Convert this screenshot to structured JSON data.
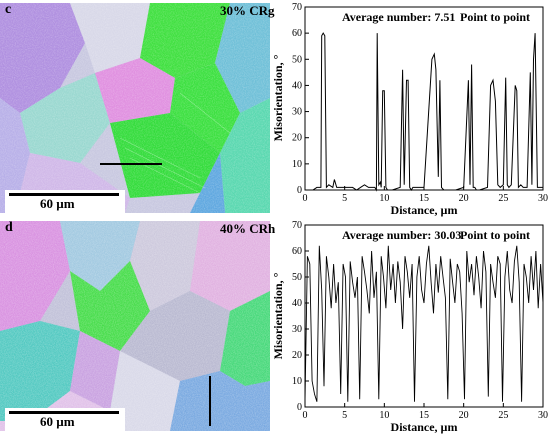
{
  "panels": [
    {
      "letter": "c",
      "condition": "30% CRg",
      "scale_bar": "60 µm",
      "measurement_line": "horizontal",
      "plot": {
        "annotation_left": "Average number: 7.51",
        "annotation_right": "Point to point"
      }
    },
    {
      "letter": "d",
      "condition": "40% CRh",
      "scale_bar": "60 µm",
      "measurement_line": "vertical",
      "plot": {
        "annotation_left": "Average number: 30.03",
        "annotation_right": "Point to point"
      }
    }
  ],
  "colors": {
    "green": "#3ce040",
    "magenta": "#e070e8",
    "blue": "#6a8ae8",
    "gray": "#b8b8c8",
    "light": "#e8e8f0",
    "line": "#000000"
  },
  "chart_data": [
    {
      "type": "line",
      "title": "",
      "xlabel": "Distance, µm",
      "ylabel": "Misorientation, °",
      "xlim": [
        0,
        30
      ],
      "ylim": [
        0,
        70
      ],
      "xticks": [
        0,
        5,
        10,
        15,
        20,
        25,
        30
      ],
      "yticks": [
        0,
        10,
        20,
        30,
        40,
        50,
        60,
        70
      ],
      "grid": false,
      "series": [
        {
          "x": [
            0,
            1.0,
            1.5,
            2.0,
            2.1,
            2.3,
            2.5,
            2.7,
            3.0,
            3.5,
            3.7,
            4.0,
            5.0,
            6.0,
            6.5,
            7.0,
            7.5,
            8.0,
            8.5,
            8.8,
            9.0,
            9.1,
            9.3,
            9.5,
            9.6,
            9.8,
            10.0,
            10.2,
            10.4,
            11.0,
            12.0,
            12.3,
            12.5,
            12.8,
            13.0,
            13.2,
            13.4,
            13.6,
            14.0,
            15.0,
            16.0,
            16.3,
            16.5,
            16.8,
            17.0,
            17.2,
            17.5,
            18.0,
            19.0,
            20.0,
            20.6,
            20.8,
            21.0,
            21.2,
            21.4,
            21.6,
            22.0,
            23.0,
            23.4,
            23.7,
            24.0,
            24.3,
            24.6,
            25.0,
            25.3,
            25.5,
            25.7,
            26.0,
            26.5,
            26.7,
            26.9,
            27.2,
            27.5,
            28.0,
            28.4,
            28.6,
            28.8,
            29.0,
            29.3,
            30.0
          ],
          "y": [
            0,
            0,
            1,
            1,
            59,
            60,
            59,
            1,
            2,
            1,
            4,
            1,
            1,
            1,
            0,
            1,
            2,
            1,
            1,
            1,
            0,
            60,
            2,
            3,
            1,
            38,
            38,
            1,
            0,
            0,
            1,
            46,
            2,
            42,
            42,
            1,
            0,
            1,
            1,
            1,
            50,
            52,
            46,
            5,
            42,
            1,
            0,
            0,
            0,
            1,
            42,
            2,
            48,
            1,
            1,
            0,
            0,
            1,
            40,
            42,
            34,
            2,
            1,
            2,
            43,
            2,
            1,
            2,
            40,
            38,
            1,
            2,
            1,
            1,
            45,
            2,
            50,
            60,
            1,
            1
          ]
        }
      ]
    },
    {
      "type": "line",
      "title": "",
      "xlabel": "Distance, µm",
      "ylabel": "Misorientation, °",
      "xlim": [
        0,
        30
      ],
      "ylim": [
        0,
        70
      ],
      "xticks": [
        0,
        5,
        10,
        15,
        20,
        25,
        30
      ],
      "yticks": [
        0,
        10,
        20,
        30,
        40,
        50,
        60,
        70
      ],
      "grid": false,
      "series": [
        {
          "x": [
            0,
            0.3,
            0.6,
            0.9,
            1.2,
            1.5,
            1.8,
            2.1,
            2.4,
            2.7,
            3.0,
            3.3,
            3.6,
            3.9,
            4.2,
            4.5,
            4.8,
            5.1,
            5.4,
            5.7,
            6.0,
            6.3,
            6.6,
            6.9,
            7.2,
            7.5,
            7.8,
            8.1,
            8.4,
            8.7,
            9.0,
            9.3,
            9.6,
            9.9,
            10.2,
            10.5,
            10.8,
            11.1,
            11.4,
            11.7,
            12.0,
            12.3,
            12.6,
            12.9,
            13.2,
            13.5,
            13.8,
            14.1,
            14.4,
            14.7,
            15.0,
            15.3,
            15.6,
            15.9,
            16.2,
            16.5,
            16.8,
            17.1,
            17.4,
            17.7,
            18.0,
            18.3,
            18.6,
            18.9,
            19.2,
            19.5,
            19.8,
            20.1,
            20.4,
            20.7,
            21.0,
            21.3,
            21.6,
            21.9,
            22.2,
            22.5,
            22.8,
            23.1,
            23.4,
            23.7,
            24.0,
            24.3,
            24.6,
            24.9,
            25.2,
            25.5,
            25.8,
            26.1,
            26.4,
            26.7,
            27.0,
            27.3,
            27.6,
            27.9,
            28.2,
            28.5,
            28.8,
            29.1,
            29.4,
            29.7,
            30.0
          ],
          "y": [
            2,
            58,
            55,
            10,
            5,
            2,
            62,
            45,
            8,
            58,
            50,
            38,
            55,
            40,
            48,
            5,
            55,
            50,
            2,
            56,
            48,
            42,
            50,
            3,
            58,
            52,
            45,
            36,
            60,
            42,
            52,
            3,
            58,
            50,
            38,
            62,
            45,
            55,
            40,
            56,
            48,
            30,
            58,
            52,
            42,
            55,
            2,
            50,
            58,
            45,
            40,
            55,
            62,
            48,
            36,
            55,
            44,
            58,
            50,
            42,
            3,
            57,
            48,
            40,
            55,
            52,
            36,
            3,
            60,
            48,
            55,
            43,
            58,
            50,
            38,
            60,
            52,
            4,
            55,
            48,
            42,
            58,
            55,
            2,
            50,
            60,
            45,
            40,
            56,
            62,
            48,
            2,
            55,
            50,
            40,
            58,
            45,
            60,
            38,
            55,
            40
          ]
        }
      ]
    }
  ]
}
